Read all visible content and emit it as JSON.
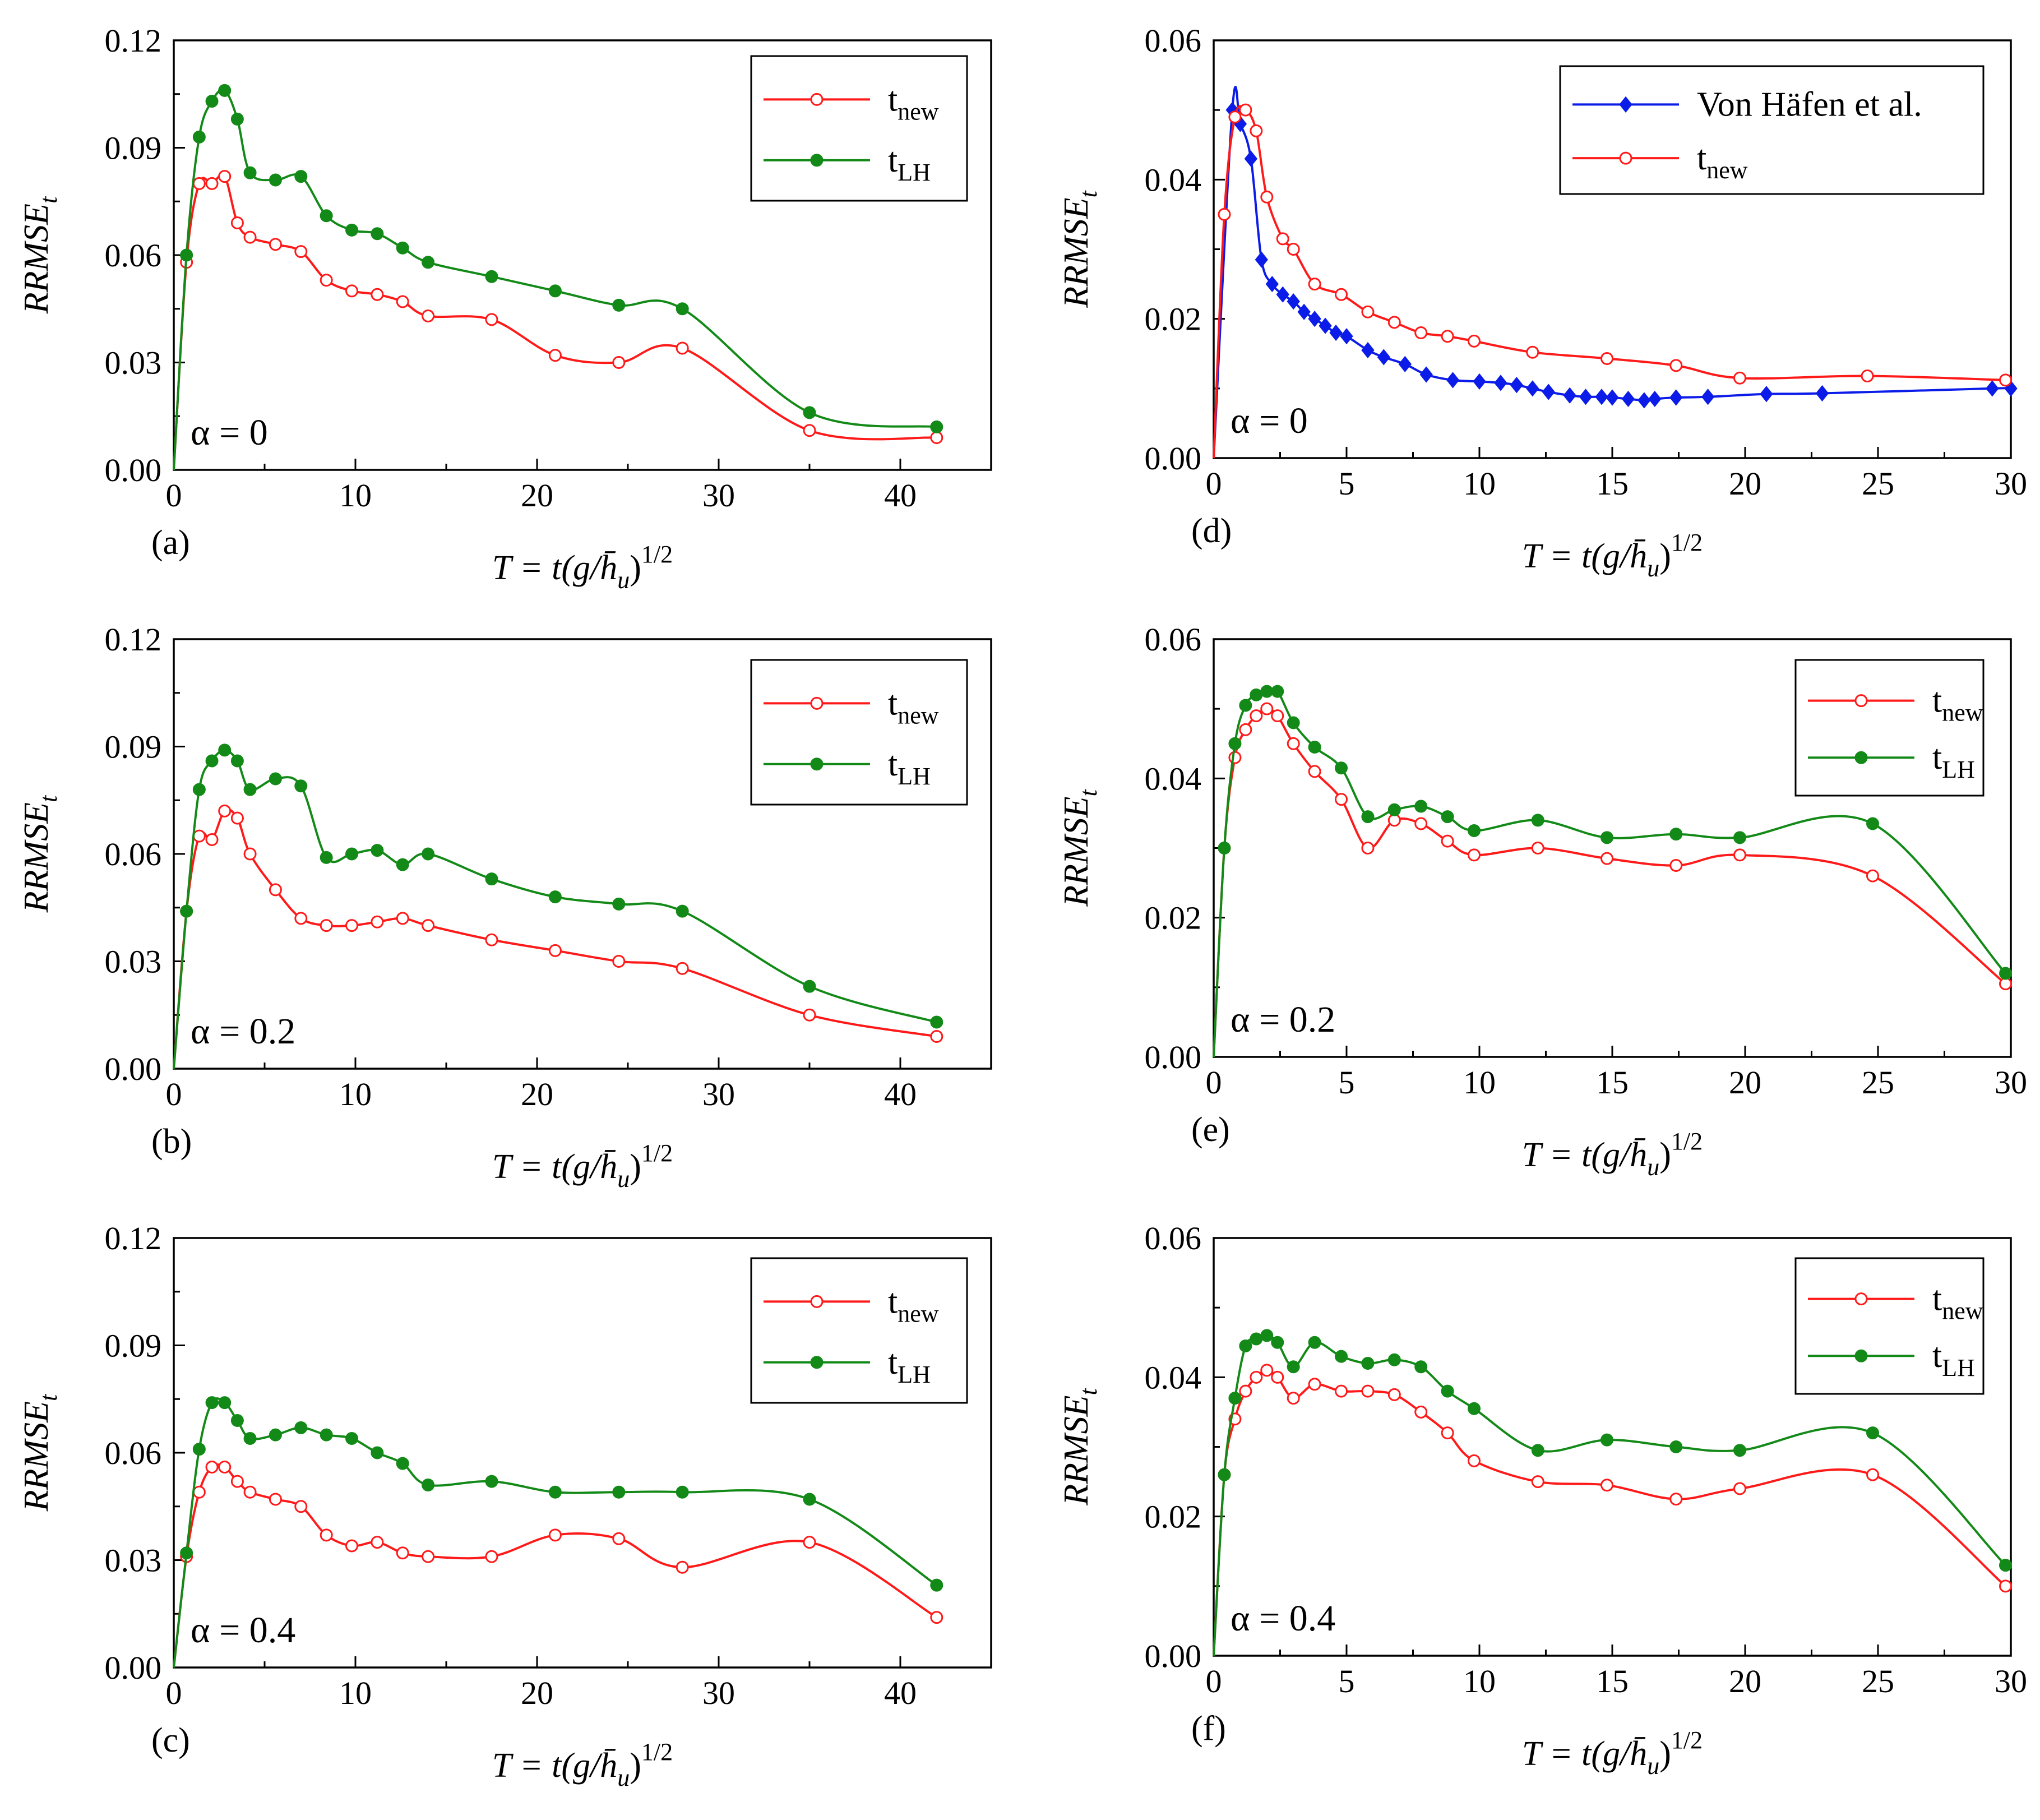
{
  "series_styles": {
    "tnew": {
      "color": "#ff1a1a",
      "marker": "open-circle"
    },
    "tLH": {
      "color": "#138a18",
      "marker": "filled-circle"
    },
    "vonhafen": {
      "color": "#0b1ce8",
      "marker": "filled-diamond"
    }
  },
  "chart_data": [
    {
      "id": "a",
      "type": "line",
      "panel_label": "(a)",
      "alpha_label": "α = 0",
      "xlabel": "T = t(g/h̄u)^1/2",
      "ylabel": "RRMSEt",
      "xlim": [
        0,
        45
      ],
      "ylim": [
        0,
        0.12
      ],
      "xticks": [
        "0",
        "10",
        "20",
        "30",
        "40"
      ],
      "xtick_values": [
        0,
        10,
        20,
        30,
        40
      ],
      "yticks": [
        "0.00",
        "0.03",
        "0.06",
        "0.09",
        "0.12"
      ],
      "ytick_values": [
        0,
        0.03,
        0.06,
        0.09,
        0.12
      ],
      "legend": [
        "t_new",
        "t_LH"
      ],
      "series": [
        {
          "key": "tnew",
          "name": "t_new",
          "x": [
            0,
            0.7,
            1.4,
            2.1,
            2.8,
            3.5,
            4.2,
            5.6,
            7.0,
            8.4,
            9.8,
            11.2,
            12.6,
            14.0,
            17.5,
            21.0,
            24.5,
            28.0,
            35.0,
            42.0
          ],
          "y": [
            0,
            0.058,
            0.08,
            0.08,
            0.082,
            0.069,
            0.065,
            0.063,
            0.061,
            0.053,
            0.05,
            0.049,
            0.047,
            0.043,
            0.042,
            0.032,
            0.03,
            0.034,
            0.011,
            0.009
          ]
        },
        {
          "key": "tLH",
          "name": "t_LH",
          "x": [
            0,
            0.7,
            1.4,
            2.1,
            2.8,
            3.5,
            4.2,
            5.6,
            7.0,
            8.4,
            9.8,
            11.2,
            12.6,
            14.0,
            17.5,
            21.0,
            24.5,
            28.0,
            35.0,
            42.0
          ],
          "y": [
            0,
            0.06,
            0.093,
            0.103,
            0.106,
            0.098,
            0.083,
            0.081,
            0.082,
            0.071,
            0.067,
            0.066,
            0.062,
            0.058,
            0.054,
            0.05,
            0.046,
            0.045,
            0.016,
            0.012
          ]
        }
      ]
    },
    {
      "id": "d",
      "type": "line",
      "panel_label": "(d)",
      "alpha_label": "α = 0",
      "xlabel": "T = t(g/h̄u)^1/2",
      "ylabel": "RRMSEt",
      "xlim": [
        0,
        30
      ],
      "ylim": [
        0,
        0.06
      ],
      "xticks": [
        "0",
        "5",
        "10",
        "15",
        "20",
        "25",
        "30"
      ],
      "xtick_values": [
        0,
        5,
        10,
        15,
        20,
        25,
        30
      ],
      "yticks": [
        "0.00",
        "0.02",
        "0.04",
        "0.06"
      ],
      "ytick_values": [
        0,
        0.02,
        0.04,
        0.06
      ],
      "legend": [
        "Von Häfen et al.",
        "t_new"
      ],
      "series": [
        {
          "key": "vonhafen",
          "name": "Von Häfen et al.",
          "x": [
            0,
            0.7,
            1.0,
            1.4,
            1.8,
            2.2,
            2.6,
            3.0,
            3.4,
            3.8,
            4.2,
            4.6,
            5.0,
            5.8,
            6.4,
            7.2,
            8.0,
            9.0,
            10.0,
            10.8,
            11.4,
            12.0,
            12.6,
            13.4,
            14.0,
            14.6,
            15.0,
            15.6,
            16.2,
            16.6,
            17.4,
            18.6,
            20.8,
            22.9,
            29.3,
            30.0
          ],
          "y": [
            0,
            0.05,
            0.048,
            0.043,
            0.0285,
            0.025,
            0.0235,
            0.0225,
            0.021,
            0.02,
            0.019,
            0.018,
            0.0175,
            0.0155,
            0.0145,
            0.0135,
            0.012,
            0.0112,
            0.011,
            0.0108,
            0.0105,
            0.01,
            0.0095,
            0.009,
            0.0088,
            0.0088,
            0.0087,
            0.0085,
            0.0083,
            0.0085,
            0.0087,
            0.0088,
            0.0092,
            0.0093,
            0.01,
            0.01
          ]
        },
        {
          "key": "tnew",
          "name": "t_new",
          "x": [
            0,
            0.4,
            0.8,
            1.2,
            1.6,
            2.0,
            2.6,
            3.0,
            3.8,
            4.8,
            5.8,
            6.8,
            7.8,
            8.8,
            9.8,
            12.0,
            14.8,
            17.4,
            19.8,
            24.6,
            29.8
          ],
          "y": [
            0,
            0.035,
            0.049,
            0.05,
            0.047,
            0.0375,
            0.0315,
            0.03,
            0.025,
            0.0235,
            0.021,
            0.0195,
            0.018,
            0.0175,
            0.0168,
            0.0152,
            0.0143,
            0.0133,
            0.0115,
            0.0118,
            0.0112
          ]
        }
      ]
    },
    {
      "id": "b",
      "type": "line",
      "panel_label": "(b)",
      "alpha_label": "α = 0.2",
      "xlabel": "T = t(g/h̄u)^1/2",
      "ylabel": "RRMSEt",
      "xlim": [
        0,
        45
      ],
      "ylim": [
        0,
        0.12
      ],
      "xticks": [
        "0",
        "10",
        "20",
        "30",
        "40"
      ],
      "xtick_values": [
        0,
        10,
        20,
        30,
        40
      ],
      "yticks": [
        "0.00",
        "0.03",
        "0.06",
        "0.09",
        "0.12"
      ],
      "ytick_values": [
        0,
        0.03,
        0.06,
        0.09,
        0.12
      ],
      "legend": [
        "t_new",
        "t_LH"
      ],
      "series": [
        {
          "key": "tnew",
          "name": "t_new",
          "x": [
            0,
            0.7,
            1.4,
            2.1,
            2.8,
            3.5,
            4.2,
            5.6,
            7.0,
            8.4,
            9.8,
            11.2,
            12.6,
            14.0,
            17.5,
            21.0,
            24.5,
            28.0,
            35.0,
            42.0
          ],
          "y": [
            0,
            0.044,
            0.065,
            0.064,
            0.072,
            0.07,
            0.06,
            0.05,
            0.042,
            0.04,
            0.04,
            0.041,
            0.042,
            0.04,
            0.036,
            0.033,
            0.03,
            0.028,
            0.015,
            0.009
          ]
        },
        {
          "key": "tLH",
          "name": "t_LH",
          "x": [
            0,
            0.7,
            1.4,
            2.1,
            2.8,
            3.5,
            4.2,
            5.6,
            7.0,
            8.4,
            9.8,
            11.2,
            12.6,
            14.0,
            17.5,
            21.0,
            24.5,
            28.0,
            35.0,
            42.0
          ],
          "y": [
            0,
            0.044,
            0.078,
            0.086,
            0.089,
            0.086,
            0.078,
            0.081,
            0.079,
            0.059,
            0.06,
            0.061,
            0.057,
            0.06,
            0.053,
            0.048,
            0.046,
            0.044,
            0.023,
            0.013
          ]
        }
      ]
    },
    {
      "id": "e",
      "type": "line",
      "panel_label": "(e)",
      "alpha_label": "α = 0.2",
      "xlabel": "T = t(g/h̄u)^1/2",
      "ylabel": "RRMSEt",
      "xlim": [
        0,
        30
      ],
      "ylim": [
        0,
        0.06
      ],
      "xticks": [
        "0",
        "5",
        "10",
        "15",
        "20",
        "25",
        "30"
      ],
      "xtick_values": [
        0,
        5,
        10,
        15,
        20,
        25,
        30
      ],
      "yticks": [
        "0.00",
        "0.02",
        "0.04",
        "0.06"
      ],
      "ytick_values": [
        0,
        0.02,
        0.04,
        0.06
      ],
      "legend": [
        "t_new",
        "t_LH"
      ],
      "series": [
        {
          "key": "tnew",
          "name": "t_new",
          "x": [
            0,
            0.4,
            0.8,
            1.2,
            1.6,
            2.0,
            2.4,
            3.0,
            3.8,
            4.8,
            5.8,
            6.8,
            7.8,
            8.8,
            9.8,
            12.2,
            14.8,
            17.4,
            19.8,
            24.8,
            29.8
          ],
          "y": [
            0,
            0.03,
            0.043,
            0.047,
            0.049,
            0.05,
            0.049,
            0.045,
            0.041,
            0.037,
            0.03,
            0.034,
            0.0335,
            0.031,
            0.029,
            0.03,
            0.0285,
            0.0275,
            0.029,
            0.026,
            0.0105
          ]
        },
        {
          "key": "tLH",
          "name": "t_LH",
          "x": [
            0,
            0.4,
            0.8,
            1.2,
            1.6,
            2.0,
            2.4,
            3.0,
            3.8,
            4.8,
            5.8,
            6.8,
            7.8,
            8.8,
            9.8,
            12.2,
            14.8,
            17.4,
            19.8,
            24.8,
            29.8
          ],
          "y": [
            0,
            0.03,
            0.045,
            0.0505,
            0.052,
            0.0525,
            0.0525,
            0.048,
            0.0445,
            0.0415,
            0.0345,
            0.0355,
            0.036,
            0.0345,
            0.0325,
            0.034,
            0.0315,
            0.032,
            0.0315,
            0.0335,
            0.012
          ]
        }
      ]
    },
    {
      "id": "c",
      "type": "line",
      "panel_label": "(c)",
      "alpha_label": "α = 0.4",
      "xlabel": "T = t(g/h̄u)^1/2",
      "ylabel": "RRMSEt",
      "xlim": [
        0,
        45
      ],
      "ylim": [
        0,
        0.12
      ],
      "xticks": [
        "0",
        "10",
        "20",
        "30",
        "40"
      ],
      "xtick_values": [
        0,
        10,
        20,
        30,
        40
      ],
      "yticks": [
        "0.00",
        "0.03",
        "0.06",
        "0.09",
        "0.12"
      ],
      "ytick_values": [
        0,
        0.03,
        0.06,
        0.09,
        0.12
      ],
      "legend": [
        "t_new",
        "t_LH"
      ],
      "series": [
        {
          "key": "tnew",
          "name": "t_new",
          "x": [
            0,
            0.7,
            1.4,
            2.1,
            2.8,
            3.5,
            4.2,
            5.6,
            7.0,
            8.4,
            9.8,
            11.2,
            12.6,
            14.0,
            17.5,
            21.0,
            24.5,
            28.0,
            35.0,
            42.0
          ],
          "y": [
            0,
            0.031,
            0.049,
            0.056,
            0.056,
            0.052,
            0.049,
            0.047,
            0.045,
            0.037,
            0.034,
            0.035,
            0.032,
            0.031,
            0.031,
            0.037,
            0.036,
            0.028,
            0.035,
            0.014
          ]
        },
        {
          "key": "tLH",
          "name": "t_LH",
          "x": [
            0,
            0.7,
            1.4,
            2.1,
            2.8,
            3.5,
            4.2,
            5.6,
            7.0,
            8.4,
            9.8,
            11.2,
            12.6,
            14.0,
            17.5,
            21.0,
            24.5,
            28.0,
            35.0,
            42.0
          ],
          "y": [
            0,
            0.032,
            0.061,
            0.074,
            0.074,
            0.069,
            0.064,
            0.065,
            0.067,
            0.065,
            0.064,
            0.06,
            0.057,
            0.051,
            0.052,
            0.049,
            0.049,
            0.049,
            0.047,
            0.023
          ]
        }
      ]
    },
    {
      "id": "f",
      "type": "line",
      "panel_label": "(f)",
      "alpha_label": "α = 0.4",
      "xlabel": "T = t(g/h̄u)^1/2",
      "ylabel": "RRMSEt",
      "xlim": [
        0,
        30
      ],
      "ylim": [
        0,
        0.06
      ],
      "xticks": [
        "0",
        "5",
        "10",
        "15",
        "20",
        "25",
        "30"
      ],
      "xtick_values": [
        0,
        5,
        10,
        15,
        20,
        25,
        30
      ],
      "yticks": [
        "0.00",
        "0.02",
        "0.04",
        "0.06"
      ],
      "ytick_values": [
        0,
        0.02,
        0.04,
        0.06
      ],
      "legend": [
        "t_new",
        "t_LH"
      ],
      "series": [
        {
          "key": "tnew",
          "name": "t_new",
          "x": [
            0,
            0.4,
            0.8,
            1.2,
            1.6,
            2.0,
            2.4,
            3.0,
            3.8,
            4.8,
            5.8,
            6.8,
            7.8,
            8.8,
            9.8,
            12.2,
            14.8,
            17.4,
            19.8,
            24.8,
            29.8
          ],
          "y": [
            0,
            0.026,
            0.034,
            0.038,
            0.04,
            0.041,
            0.04,
            0.037,
            0.039,
            0.038,
            0.038,
            0.0375,
            0.035,
            0.032,
            0.028,
            0.025,
            0.0245,
            0.0225,
            0.024,
            0.026,
            0.01
          ]
        },
        {
          "key": "tLH",
          "name": "t_LH",
          "x": [
            0,
            0.4,
            0.8,
            1.2,
            1.6,
            2.0,
            2.4,
            3.0,
            3.8,
            4.8,
            5.8,
            6.8,
            7.8,
            8.8,
            9.8,
            12.2,
            14.8,
            17.4,
            19.8,
            24.8,
            29.8
          ],
          "y": [
            0,
            0.026,
            0.037,
            0.0445,
            0.0455,
            0.046,
            0.045,
            0.0415,
            0.045,
            0.043,
            0.042,
            0.0425,
            0.0415,
            0.038,
            0.0355,
            0.0295,
            0.031,
            0.03,
            0.0295,
            0.032,
            0.013
          ]
        }
      ]
    }
  ]
}
